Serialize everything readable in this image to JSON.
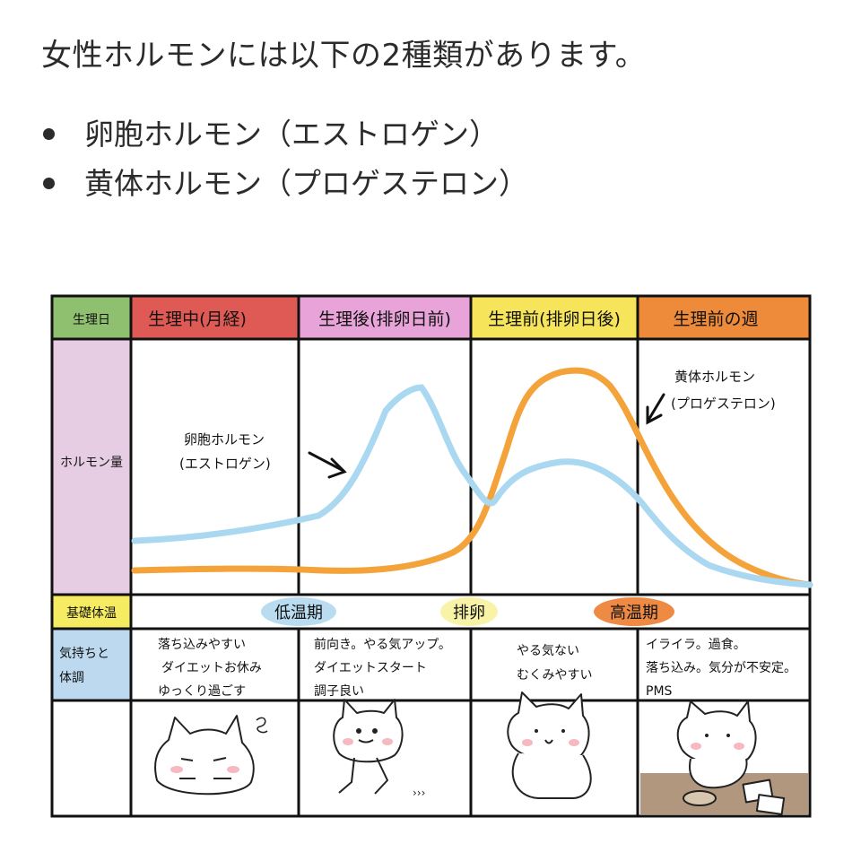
{
  "intro": "女性ホルモンには以下の2種類があります。",
  "bullets": [
    "卵胞ホルモン（エストロゲン）",
    "黄体ホルモン（プロゲステロン）"
  ],
  "rows": {
    "cycle_day": "生理日",
    "hormone_amount": "ホルモン量",
    "basal_temp": "基礎体温",
    "mood": [
      "気持ちと",
      "体調"
    ]
  },
  "phases": [
    {
      "label": "生理中(月経)",
      "color": "#e05a55",
      "mood": [
        "落ち込みやすい",
        "ダイエットお休み",
        "ゆっくり過ごす"
      ]
    },
    {
      "label": "生理後(排卵日前)",
      "color": "#e8a3d8",
      "mood": [
        "前向き。やる気アップ。",
        "ダイエットスタート",
        "調子良い"
      ]
    },
    {
      "label": "生理前(排卵日後)",
      "color": "#f6e45b",
      "mood": [
        "やる気ない",
        "むくみやすい"
      ]
    },
    {
      "label": "生理前の週",
      "color": "#ee8b3a",
      "mood": [
        "イライラ。過食。",
        "落ち込み。気分が不安定。",
        "PMS"
      ]
    }
  ],
  "temp_labels": [
    {
      "text": "低温期",
      "color": "#b9dcf1"
    },
    {
      "text": "排卵",
      "color": "#f8f3a6"
    },
    {
      "text": "高温期",
      "color": "#ef8a45"
    }
  ],
  "estrogen": {
    "label": [
      "卵胞ホルモン",
      "(エストロゲン)"
    ],
    "color": "#a9d8f0"
  },
  "progesterone": {
    "label": [
      "黄体ホルモン",
      "(プロゲステロン)"
    ],
    "color": "#f3a33a"
  },
  "row_label_colors": {
    "cycle_day": "#8fc06f",
    "hormone_amount": "#e7cde3",
    "basal_temp": "#f5ec61",
    "mood": "#bcd9ef"
  }
}
